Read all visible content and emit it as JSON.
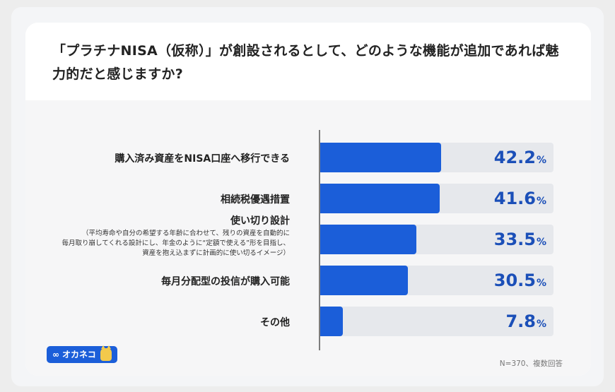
{
  "title": "「プラチナNISA（仮称）」が創設されるとして、どのような機能が追加であれば魅力的だと感じますか?",
  "chart_data": {
    "type": "bar",
    "orientation": "horizontal",
    "categories": [
      "購入済み資産をNISA口座へ移行できる",
      "相続税優遇措置",
      "使い切り設計",
      "毎月分配型の投信が購入可能",
      "その他"
    ],
    "category_notes": [
      "",
      "",
      "（平均寿命や自分の希望する年齢に合わせて、残りの資産を自動的に毎月取り崩してくれる設計にし、年金のように“定額で使える”形を目指し、資産を抱え込まずに計画的に使い切るイメージ）",
      "",
      ""
    ],
    "values": [
      42.2,
      41.6,
      33.5,
      30.5,
      7.8
    ],
    "value_labels": [
      "42.2",
      "41.6",
      "33.5",
      "30.5",
      "7.8"
    ],
    "unit": "%",
    "xlim": [
      0,
      100
    ],
    "bar_color": "#1b5ed9",
    "track_color": "#e6e8ec",
    "value_color": "#1b4fb8"
  },
  "sublabel_lines": [
    "（平均寿命や自分の希望する年齢に合わせて、残りの資産を自動的に",
    "毎月取り崩してくれる設計にし、年金のように“定額で使える”形を目指し、",
    "資産を抱え込まずに計画的に使い切るイメージ）"
  ],
  "footer": {
    "brand": "オカネコ",
    "note": "N=370、複数回答"
  }
}
